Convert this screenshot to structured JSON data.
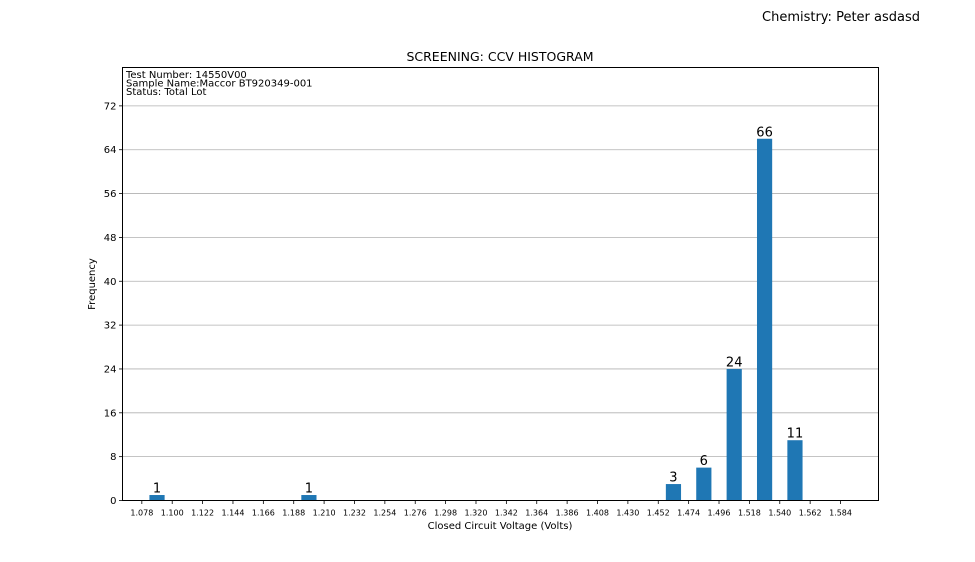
{
  "header": {
    "chemistry": "Chemistry: Peter asdasd"
  },
  "chart_data": {
    "type": "bar",
    "title": "SCREENING: CCV HISTOGRAM",
    "xlabel": "Closed Circuit Voltage (Volts)",
    "ylabel": "Frequency",
    "info_lines": [
      "Test Number: 14550V00",
      "Sample Name:Maccor BT920349-001",
      "Status: Total Lot"
    ],
    "x_ticks": [
      "1.078",
      "1.100",
      "1.122",
      "1.144",
      "1.166",
      "1.188",
      "1.210",
      "1.232",
      "1.254",
      "1.276",
      "1.298",
      "1.320",
      "1.342",
      "1.364",
      "1.386",
      "1.408",
      "1.430",
      "1.452",
      "1.474",
      "1.496",
      "1.518",
      "1.540",
      "1.562",
      "1.584"
    ],
    "y_ticks": [
      0,
      8,
      16,
      24,
      32,
      40,
      48,
      56,
      64,
      72
    ],
    "ylim": [
      0,
      79
    ],
    "xlim": [
      1.064,
      1.6115
    ],
    "bars": [
      {
        "x": 1.089,
        "value": 1,
        "label": "1"
      },
      {
        "x": 1.199,
        "value": 1,
        "label": "1"
      },
      {
        "x": 1.463,
        "value": 3,
        "label": "3"
      },
      {
        "x": 1.485,
        "value": 6,
        "label": "6"
      },
      {
        "x": 1.507,
        "value": 24,
        "label": "24"
      },
      {
        "x": 1.529,
        "value": 66,
        "label": "66"
      },
      {
        "x": 1.551,
        "value": 11,
        "label": "11"
      }
    ],
    "bar_width": 0.011,
    "grid": "horizontal",
    "bar_color": "#1f77b4"
  }
}
